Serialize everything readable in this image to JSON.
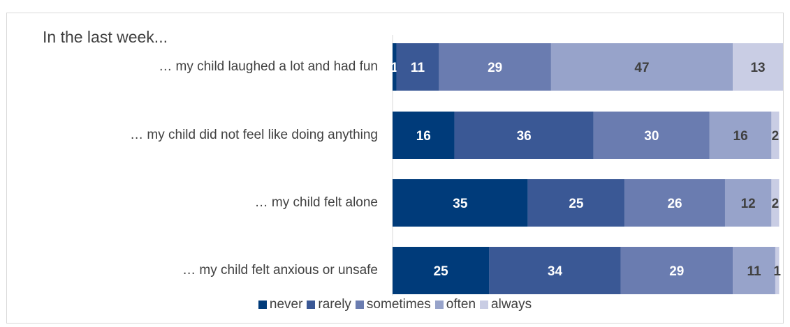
{
  "chart_data": {
    "type": "bar",
    "orientation": "horizontal",
    "stacked": true,
    "title": "In the last week...",
    "categories": [
      "… my child laughed a lot and had fun",
      "… my child did not feel like doing anything",
      "… my child felt alone",
      "… my child felt anxious or unsafe"
    ],
    "series": [
      {
        "name": "never",
        "color": "#003b7a",
        "values": [
          1,
          16,
          35,
          25
        ]
      },
      {
        "name": "rarely",
        "color": "#3a5895",
        "values": [
          11,
          36,
          25,
          34
        ]
      },
      {
        "name": "sometimes",
        "color": "#6a7cb0",
        "values": [
          29,
          30,
          26,
          29
        ]
      },
      {
        "name": "often",
        "color": "#97a3ca",
        "values": [
          47,
          16,
          12,
          11
        ]
      },
      {
        "name": "always",
        "color": "#c9cde4",
        "values": [
          13,
          2,
          2,
          1
        ]
      }
    ],
    "xlim": [
      0,
      101
    ],
    "legend_position": "bottom",
    "grid": false
  }
}
